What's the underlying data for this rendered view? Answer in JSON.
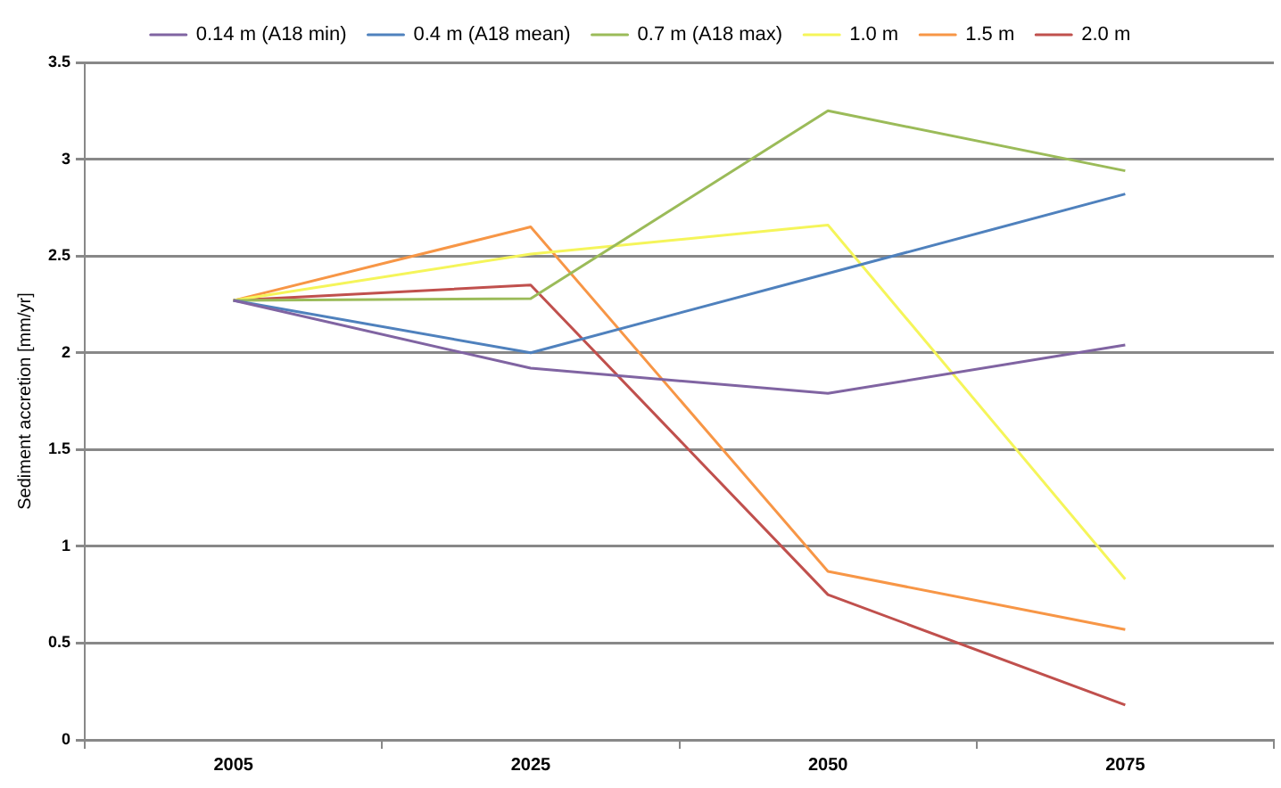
{
  "chart_data": {
    "type": "line",
    "ylabel": "Sediment accretion [mm/yr]",
    "categories": [
      "2005",
      "2025",
      "2050",
      "2075"
    ],
    "series": [
      {
        "name": "0.14 m (A18 min)",
        "color": "#8064a2",
        "values": [
          2.27,
          1.92,
          1.79,
          2.04
        ]
      },
      {
        "name": "0.4 m (A18 mean)",
        "color": "#4f81bd",
        "values": [
          2.27,
          2.0,
          2.41,
          2.82
        ]
      },
      {
        "name": "0.7 m (A18 max)",
        "color": "#9bbb59",
        "values": [
          2.27,
          2.28,
          3.25,
          2.94
        ]
      },
      {
        "name": "1.0 m",
        "color": "#f5f55a",
        "values": [
          2.27,
          2.51,
          2.66,
          0.83
        ]
      },
      {
        "name": "1.5 m",
        "color": "#f79646",
        "values": [
          2.27,
          2.65,
          0.87,
          0.57
        ]
      },
      {
        "name": "2.0 m",
        "color": "#c0504d",
        "values": [
          2.27,
          2.35,
          0.75,
          0.18
        ]
      }
    ],
    "ylim": [
      0,
      3.5
    ],
    "yticks": [
      0,
      0.5,
      1,
      1.5,
      2,
      2.5,
      3,
      3.5
    ],
    "grid": "y",
    "legend": "top",
    "marker": "none",
    "line_style": "solid"
  }
}
